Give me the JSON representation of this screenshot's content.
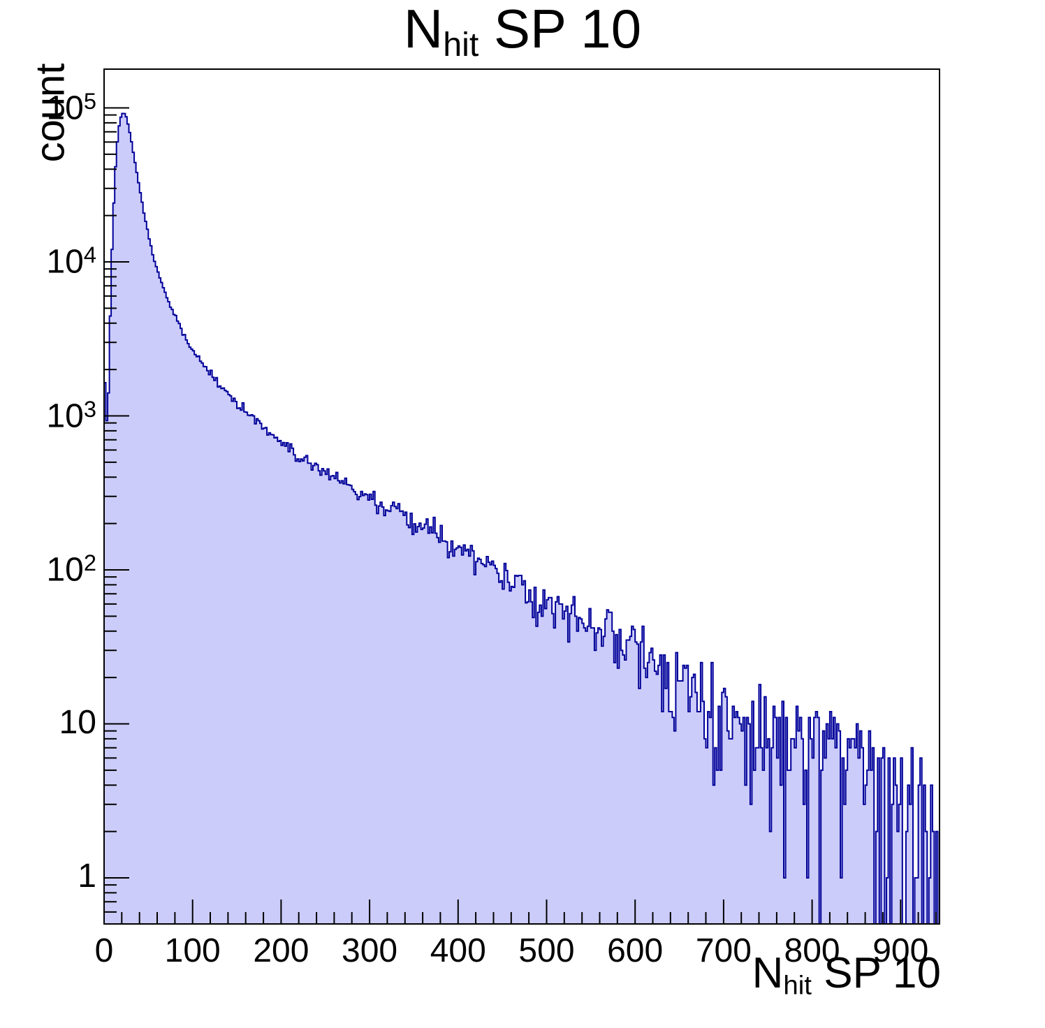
{
  "title": {
    "main": "N",
    "sub": "hit",
    "rest": " SP 10"
  },
  "y_axis_title": "count",
  "x_axis_title": {
    "main": "N",
    "sub": "hit",
    "rest": " SP 10"
  },
  "chart_data": {
    "type": "bar",
    "subtype": "histogram-step-filled",
    "title": "N_hit SP 10",
    "xlabel": "N_hit SP 10",
    "ylabel": "count",
    "x_axis": {
      "min": 0,
      "max": 944,
      "bin_width": 2,
      "major_ticks": [
        0,
        100,
        200,
        300,
        400,
        500,
        600,
        700,
        800,
        900
      ],
      "major_tick_labels": [
        "0",
        "100",
        "200",
        "300",
        "400",
        "500",
        "600",
        "700",
        "800",
        "900"
      ],
      "minor_tick_step": 20
    },
    "y_axis": {
      "scale": "log",
      "min": 0.49,
      "max": 175000,
      "tick_labels": [
        {
          "base": "1",
          "exp": "",
          "value": 1
        },
        {
          "base": "10",
          "exp": "",
          "value": 10
        },
        {
          "base": "10",
          "exp": "2",
          "value": 100
        },
        {
          "base": "10",
          "exp": "3",
          "value": 1000
        },
        {
          "base": "10",
          "exp": "4",
          "value": 10000
        },
        {
          "base": "10",
          "exp": "5",
          "value": 100000
        }
      ]
    },
    "legend": null,
    "grid": false,
    "noise_seed": 1337,
    "noise_rel_sigma_scale": 1.25,
    "trend_points": [
      [
        0,
        2500
      ],
      [
        2,
        1100
      ],
      [
        4,
        800
      ],
      [
        6,
        2500
      ],
      [
        8,
        8000
      ],
      [
        10,
        18000
      ],
      [
        12,
        33000
      ],
      [
        14,
        52000
      ],
      [
        16,
        70000
      ],
      [
        18,
        84000
      ],
      [
        20,
        91500
      ],
      [
        22,
        93500
      ],
      [
        24,
        90500
      ],
      [
        26,
        84000
      ],
      [
        28,
        75000
      ],
      [
        30,
        65000
      ],
      [
        34,
        48000
      ],
      [
        38,
        35000
      ],
      [
        42,
        26000
      ],
      [
        46,
        19500
      ],
      [
        50,
        15200
      ],
      [
        55,
        11200
      ],
      [
        60,
        8900
      ],
      [
        65,
        7300
      ],
      [
        70,
        6100
      ],
      [
        75,
        5200
      ],
      [
        80,
        4500
      ],
      [
        90,
        3400
      ],
      [
        100,
        2650
      ],
      [
        110,
        2200
      ],
      [
        120,
        1870
      ],
      [
        130,
        1620
      ],
      [
        140,
        1400
      ],
      [
        150,
        1200
      ],
      [
        160,
        1080
      ],
      [
        170,
        970
      ],
      [
        180,
        870
      ],
      [
        190,
        750
      ],
      [
        200,
        660
      ],
      [
        210,
        600
      ],
      [
        220,
        550
      ],
      [
        230,
        505
      ],
      [
        240,
        465
      ],
      [
        250,
        430
      ],
      [
        260,
        398
      ],
      [
        270,
        368
      ],
      [
        280,
        342
      ],
      [
        290,
        318
      ],
      [
        300,
        295
      ],
      [
        310,
        274
      ],
      [
        320,
        254
      ],
      [
        330,
        236
      ],
      [
        340,
        219
      ],
      [
        350,
        203
      ],
      [
        360,
        188
      ],
      [
        370,
        174
      ],
      [
        380,
        161
      ],
      [
        390,
        149
      ],
      [
        400,
        138
      ],
      [
        410,
        128
      ],
      [
        420,
        118
      ],
      [
        430,
        109
      ],
      [
        440,
        101
      ],
      [
        450,
        94
      ],
      [
        460,
        87
      ],
      [
        470,
        81
      ],
      [
        480,
        75
      ],
      [
        490,
        70
      ],
      [
        500,
        65
      ],
      [
        510,
        60
      ],
      [
        520,
        56
      ],
      [
        530,
        52
      ],
      [
        540,
        48
      ],
      [
        550,
        45
      ],
      [
        560,
        42
      ],
      [
        570,
        39
      ],
      [
        580,
        36
      ],
      [
        590,
        33
      ],
      [
        600,
        30
      ],
      [
        610,
        27.5
      ],
      [
        620,
        25.5
      ],
      [
        630,
        23.5
      ],
      [
        640,
        21.7
      ],
      [
        650,
        20
      ],
      [
        660,
        18.5
      ],
      [
        670,
        17
      ],
      [
        680,
        15.8
      ],
      [
        690,
        14.8
      ],
      [
        700,
        13.8
      ],
      [
        710,
        13
      ],
      [
        720,
        12.2
      ],
      [
        730,
        11.5
      ],
      [
        740,
        10.8
      ],
      [
        750,
        10.2
      ],
      [
        760,
        9.7
      ],
      [
        770,
        9.2
      ],
      [
        780,
        8.8
      ],
      [
        790,
        8.4
      ],
      [
        800,
        8.0
      ],
      [
        810,
        7.6
      ],
      [
        820,
        7.2
      ],
      [
        830,
        6.8
      ],
      [
        840,
        6.4
      ],
      [
        850,
        6.0
      ],
      [
        860,
        5.6
      ],
      [
        870,
        5.2
      ],
      [
        880,
        4.8
      ],
      [
        890,
        4.4
      ],
      [
        900,
        4.0
      ],
      [
        910,
        3.5
      ],
      [
        920,
        2.9
      ],
      [
        930,
        2.2
      ],
      [
        935,
        1.8
      ],
      [
        940,
        1.3
      ],
      [
        944,
        1.0
      ]
    ],
    "peak": {
      "x": 22,
      "count": 93500
    }
  },
  "colors": {
    "fill": "#ccccfa",
    "line": "#000099",
    "axis": "#000000",
    "background": "#ffffff",
    "text": "#000000"
  }
}
